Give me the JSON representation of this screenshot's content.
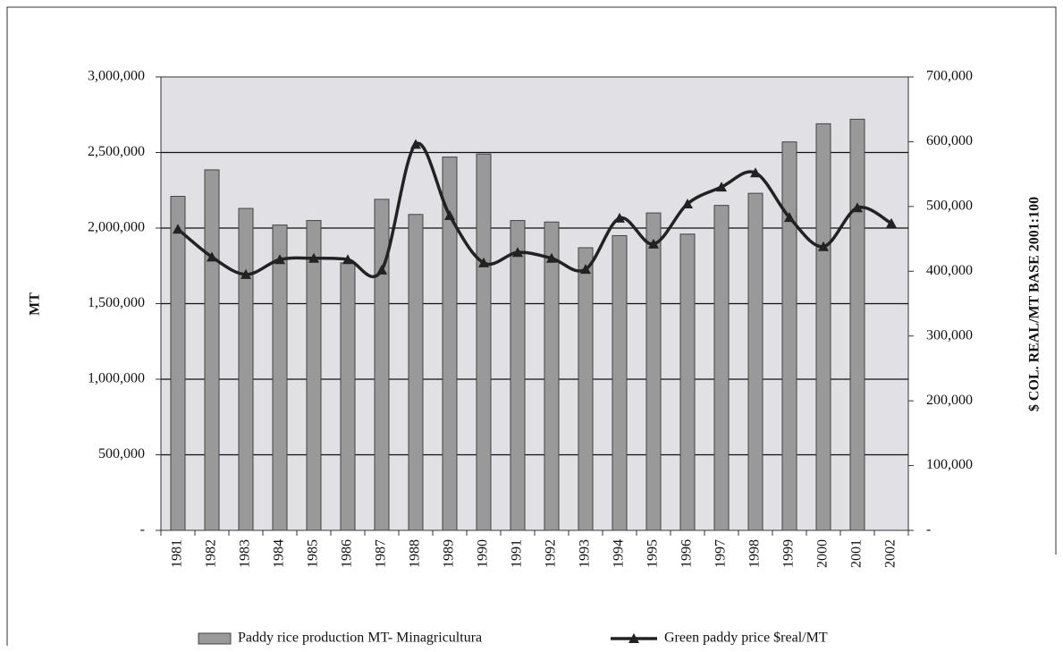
{
  "chart_data": {
    "type": "bar-line",
    "categories": [
      "1981",
      "1982",
      "1983",
      "1984",
      "1985",
      "1986",
      "1987",
      "1988",
      "1989",
      "1990",
      "1991",
      "1992",
      "1993",
      "1994",
      "1995",
      "1996",
      "1997",
      "1998",
      "1999",
      "2000",
      "2001",
      "2002"
    ],
    "y_label": "MT",
    "y2_label": "$ COL. REAL/MT BASE 2001:100",
    "ylim": [
      0,
      3000000
    ],
    "yticks": [
      {
        "value": 0,
        "label": "-"
      },
      {
        "value": 500000,
        "label": "500,000"
      },
      {
        "value": 1000000,
        "label": "1,000,000"
      },
      {
        "value": 1500000,
        "label": "1,500,000"
      },
      {
        "value": 2000000,
        "label": "2,000,000"
      },
      {
        "value": 2500000,
        "label": "2,500,000"
      },
      {
        "value": 3000000,
        "label": "3,000,000"
      }
    ],
    "y2lim": [
      0,
      700000
    ],
    "y2ticks": [
      {
        "value": 0,
        "label": "-"
      },
      {
        "value": 100000,
        "label": "100,000"
      },
      {
        "value": 200000,
        "label": "200,000"
      },
      {
        "value": 300000,
        "label": "300,000"
      },
      {
        "value": 400000,
        "label": "400,000"
      },
      {
        "value": 500000,
        "label": "500,000"
      },
      {
        "value": 600000,
        "label": "600,000"
      },
      {
        "value": 700000,
        "label": "700,000"
      }
    ],
    "grid": true,
    "series": [
      {
        "name": "Paddy rice production MT- Minagricultura",
        "type": "bar",
        "color": "#999999",
        "values": [
          2210000,
          2385000,
          2130000,
          2020000,
          2050000,
          1770000,
          2190000,
          2090000,
          2470000,
          2490000,
          2050000,
          2040000,
          1870000,
          1950000,
          2100000,
          1960000,
          2150000,
          2230000,
          2570000,
          2690000,
          2720000,
          null
        ]
      },
      {
        "name": "Green paddy price $real/MT",
        "type": "line",
        "axis": "y2",
        "color": "#222222",
        "values": [
          465000,
          422000,
          395000,
          418000,
          420000,
          418000,
          402000,
          596000,
          486000,
          413000,
          429000,
          420000,
          403000,
          482000,
          442000,
          504000,
          530000,
          552000,
          483000,
          438000,
          498000,
          474000
        ]
      }
    ]
  }
}
